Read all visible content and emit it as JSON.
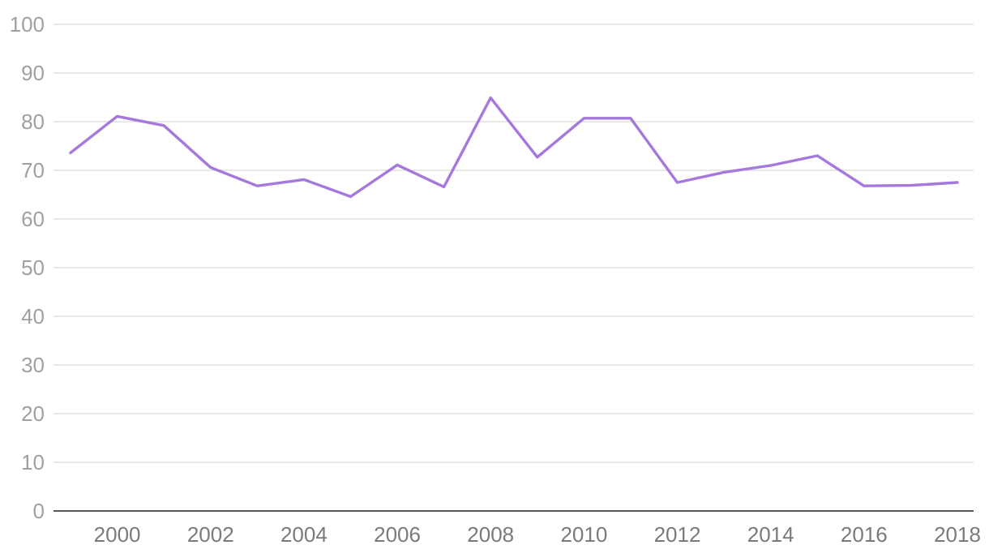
{
  "chart_data": {
    "type": "line",
    "title": "",
    "xlabel": "",
    "ylabel": "",
    "x": [
      1999,
      2000,
      2001,
      2002,
      2003,
      2004,
      2005,
      2006,
      2007,
      2008,
      2009,
      2010,
      2011,
      2012,
      2013,
      2014,
      2015,
      2016,
      2017,
      2018
    ],
    "series": [
      {
        "values": [
          73.6,
          81.1,
          79.2,
          70.6,
          66.8,
          68.1,
          64.6,
          71.1,
          66.6,
          84.9,
          72.7,
          80.7,
          80.7,
          67.5,
          69.6,
          71.0,
          73.0,
          66.8,
          66.9,
          67.5
        ],
        "color": "#a578dc"
      }
    ],
    "ylim": [
      0,
      100
    ],
    "xlim": [
      1999,
      2018
    ],
    "yticks": [
      0,
      10,
      20,
      30,
      40,
      50,
      60,
      70,
      80,
      90,
      100
    ],
    "xticks": [
      2000,
      2002,
      2004,
      2006,
      2008,
      2010,
      2012,
      2014,
      2016,
      2018
    ],
    "grid": true,
    "legend": "none"
  }
}
